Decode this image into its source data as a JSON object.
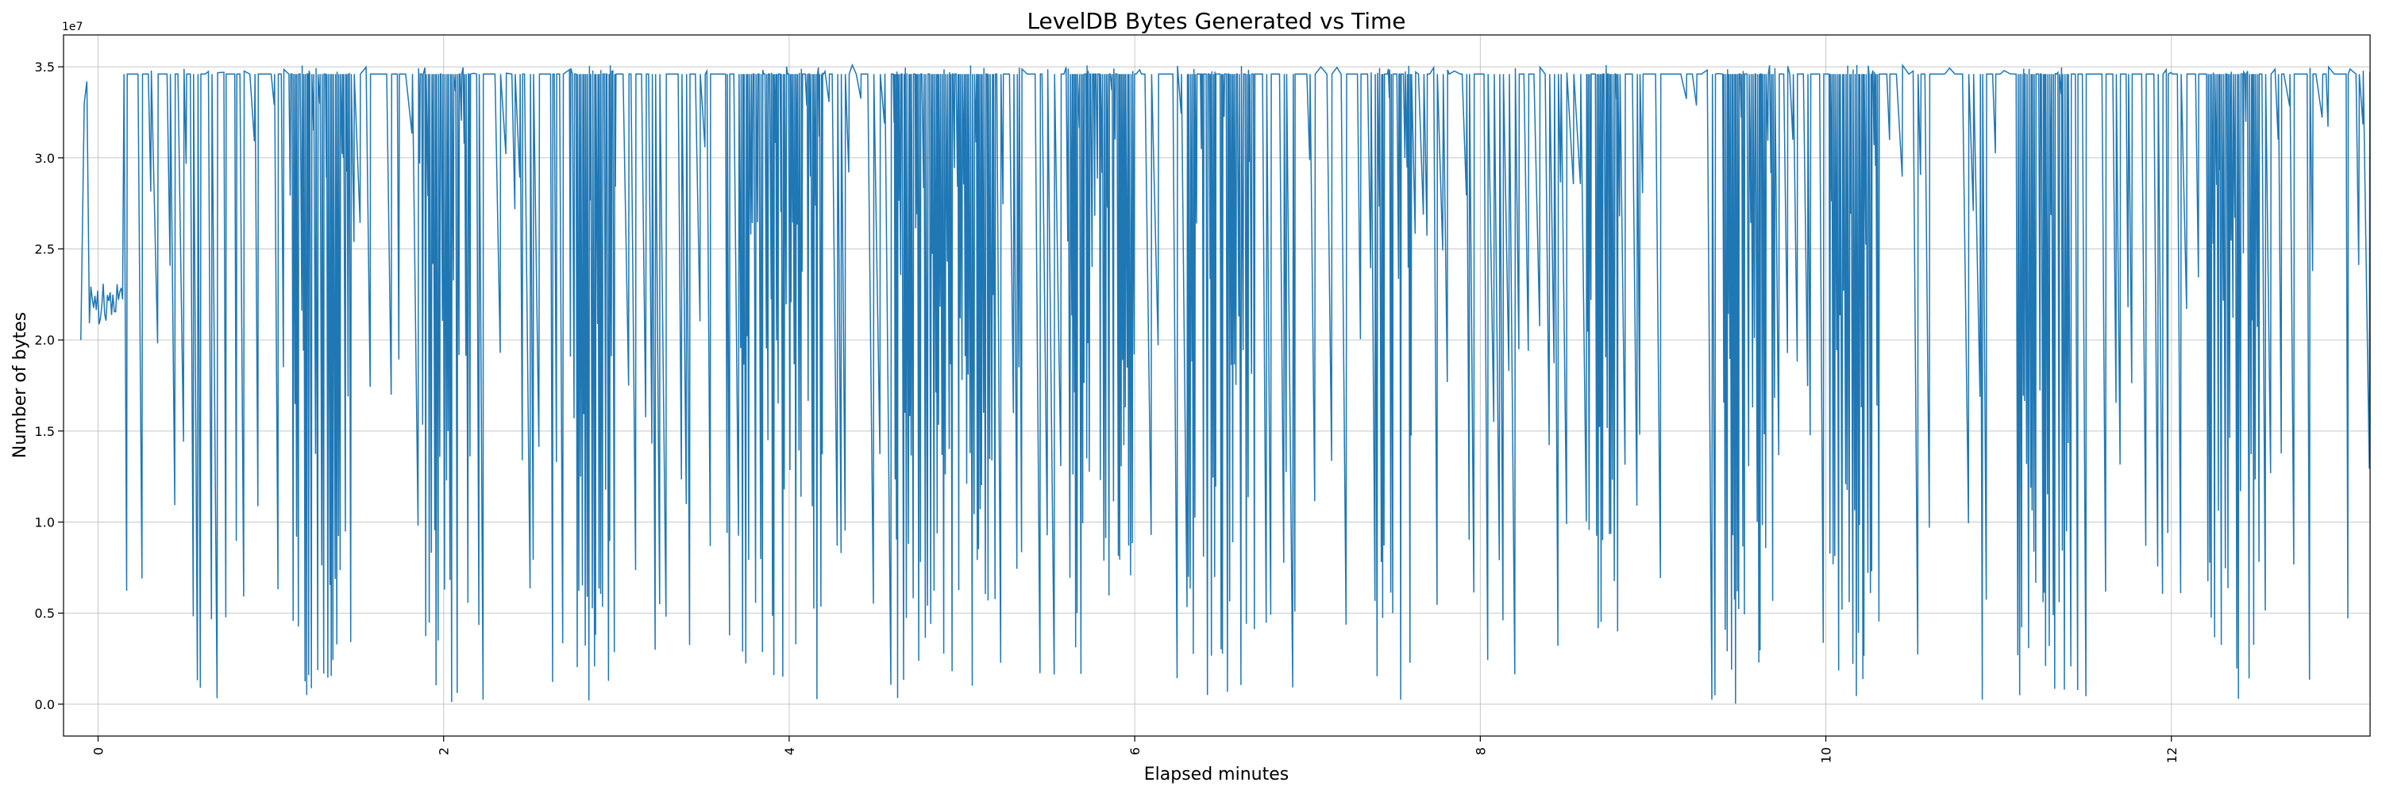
{
  "chart_data": {
    "type": "line",
    "title": "LevelDB Bytes Generated vs Time",
    "xlabel": "Elapsed minutes",
    "ylabel": "Number of bytes",
    "y_offset_label": "1e7",
    "y_scale": 10000000,
    "xlim": [
      -0.2,
      13.15
    ],
    "ylim": [
      -1750000,
      36750000
    ],
    "x_ticks": [
      0,
      2,
      4,
      6,
      8,
      10,
      12
    ],
    "x_tick_labels": [
      "0",
      "2",
      "4",
      "6",
      "8",
      "10",
      "12"
    ],
    "y_ticks": [
      0,
      5000000,
      10000000,
      15000000,
      20000000,
      25000000,
      30000000,
      35000000
    ],
    "y_tick_labels": [
      "0.0",
      "0.5",
      "1.0",
      "1.5",
      "2.0",
      "2.5",
      "3.0",
      "3.5"
    ],
    "grid": true,
    "series": [
      {
        "name": "bytes",
        "color": "#1f77b4",
        "plateau": 34600000,
        "x_start": -0.1,
        "x_end": 13.15,
        "initial_segment": {
          "x_end": 0.15,
          "level": 22000000,
          "peak": 34200000
        },
        "dense_regions": [
          [
            1.1,
            1.45
          ],
          [
            1.85,
            2.15
          ],
          [
            2.7,
            3.0
          ],
          [
            3.7,
            4.2
          ],
          [
            4.6,
            5.2
          ],
          [
            5.6,
            6.0
          ],
          [
            6.3,
            6.7
          ],
          [
            7.4,
            7.6
          ],
          [
            8.6,
            8.8
          ],
          [
            9.4,
            9.7
          ],
          [
            10.0,
            10.3
          ],
          [
            11.1,
            11.4
          ],
          [
            12.2,
            12.5
          ]
        ]
      }
    ]
  }
}
